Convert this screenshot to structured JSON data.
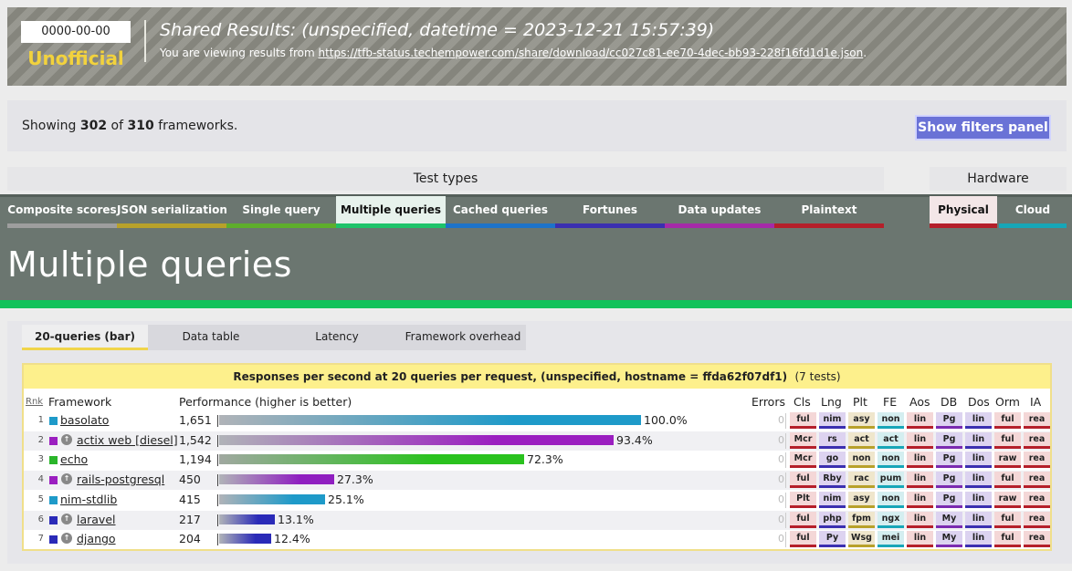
{
  "header": {
    "date": "0000-00-00",
    "status": "Unofficial",
    "title": "Shared Results: (unspecified, datetime = 2023-12-21 15:57:39)",
    "subtitle_prefix": "You are viewing results from ",
    "subtitle_link": "https://tfb-status.techempower.com/share/download/cc027c81-ee70-4dec-bb93-228f16fd1d1e.json",
    "subtitle_suffix": "."
  },
  "summary": {
    "prefix": "Showing ",
    "shown": "302",
    "middle": " of ",
    "total": "310",
    "suffix": " frameworks.",
    "filters_button": "Show filters panel"
  },
  "section_headers": {
    "test_types": "Test types",
    "hardware": "Hardware"
  },
  "test_tabs": [
    {
      "label": "Composite scores",
      "color": "#9e9e9e"
    },
    {
      "label": "JSON serialization",
      "color": "#b8a12a"
    },
    {
      "label": "Single query",
      "color": "#5eae2c"
    },
    {
      "label": "Multiple queries",
      "color": "#1ec36a",
      "active": true
    },
    {
      "label": "Cached queries",
      "color": "#1d73c9"
    },
    {
      "label": "Fortunes",
      "color": "#3b2fb0"
    },
    {
      "label": "Data updates",
      "color": "#a52aa8"
    },
    {
      "label": "Plaintext",
      "color": "#b51f2a"
    }
  ],
  "hardware_tabs": [
    {
      "label": "Physical",
      "color": "#b51f2a",
      "active": true
    },
    {
      "label": "Cloud",
      "color": "#17a6b8"
    }
  ],
  "page_title": "Multiple queries",
  "sub_tabs": [
    {
      "label": "20-queries (bar)",
      "active": true
    },
    {
      "label": "Data table"
    },
    {
      "label": "Latency"
    },
    {
      "label": "Framework overhead"
    }
  ],
  "table": {
    "title": "Responses per second at 20 queries per request, (unspecified, hostname = ffda62f07df1)",
    "count": "(7 tests)",
    "columns": {
      "rank": "Rnk",
      "framework": "Framework",
      "performance": "Performance (higher is better)",
      "errors": "Errors",
      "cls": "Cls",
      "lng": "Lng",
      "plt": "Plt",
      "fe": "FE",
      "aos": "Aos",
      "db": "DB",
      "dos": "Dos",
      "orm": "Orm",
      "ia": "IA"
    }
  },
  "chart_data": {
    "type": "bar",
    "title": "Responses per second at 20 queries per request, (unspecified, hostname = ffda62f07df1)",
    "categories": [
      "basolato",
      "actix web [diesel]",
      "echo",
      "rails-postgresql",
      "nim-stdlib",
      "laravel",
      "django"
    ],
    "values": [
      1651,
      1542,
      1194,
      450,
      415,
      217,
      204
    ],
    "percent": [
      "100.0%",
      "93.4%",
      "72.3%",
      "27.3%",
      "25.1%",
      "13.1%",
      "12.4%"
    ],
    "ylabel": "Performance (higher is better)"
  },
  "rows": [
    {
      "rank": "1",
      "name": "basolato",
      "value": "1,651",
      "pct": "100.0%",
      "frac": 1.0,
      "sq": "#1e9ac9",
      "icon": false,
      "bar": [
        "#b0b3b8",
        "#1e9ac9"
      ],
      "errors": "0",
      "badges": [
        "ful",
        "nim",
        "asy",
        "non",
        "lin",
        "Pg",
        "lin",
        "ful",
        "rea"
      ]
    },
    {
      "rank": "2",
      "name": "actix web [diesel]",
      "value": "1,542",
      "pct": "93.4%",
      "frac": 0.934,
      "sq": "#9b1fc0",
      "icon": true,
      "bar": [
        "#b0b3b8",
        "#9b1fc0"
      ],
      "errors": "0",
      "badges": [
        "Mcr",
        "rs",
        "act",
        "act",
        "lin",
        "Pg",
        "lin",
        "ful",
        "rea"
      ]
    },
    {
      "rank": "3",
      "name": "echo",
      "value": "1,194",
      "pct": "72.3%",
      "frac": 0.723,
      "sq": "#2ab52a",
      "icon": false,
      "bar": [
        "#a0a8a0",
        "#2ac21e"
      ],
      "errors": "0",
      "badges": [
        "Mcr",
        "go",
        "non",
        "non",
        "lin",
        "Pg",
        "lin",
        "raw",
        "rea"
      ]
    },
    {
      "rank": "4",
      "name": "rails-postgresql",
      "value": "450",
      "pct": "27.3%",
      "frac": 0.273,
      "sq": "#9b1fc0",
      "icon": true,
      "bar": [
        "#b0b3b8",
        "#8f1fc0"
      ],
      "errors": "0",
      "badges": [
        "ful",
        "Rby",
        "rac",
        "pum",
        "lin",
        "Pg",
        "lin",
        "ful",
        "rea"
      ]
    },
    {
      "rank": "5",
      "name": "nim-stdlib",
      "value": "415",
      "pct": "25.1%",
      "frac": 0.251,
      "sq": "#1e9ac9",
      "icon": false,
      "bar": [
        "#b0b3b8",
        "#1e9ac9"
      ],
      "errors": "0",
      "badges": [
        "Plt",
        "nim",
        "asy",
        "non",
        "lin",
        "Pg",
        "lin",
        "raw",
        "rea"
      ]
    },
    {
      "rank": "6",
      "name": "laravel",
      "value": "217",
      "pct": "13.1%",
      "frac": 0.131,
      "sq": "#2a2ab8",
      "icon": true,
      "bar": [
        "#b0b3b8",
        "#2a2ab8"
      ],
      "errors": "0",
      "badges": [
        "ful",
        "php",
        "fpm",
        "ngx",
        "lin",
        "My",
        "lin",
        "ful",
        "rea"
      ]
    },
    {
      "rank": "7",
      "name": "django",
      "value": "204",
      "pct": "12.4%",
      "frac": 0.124,
      "sq": "#2a2ab8",
      "icon": true,
      "bar": [
        "#b0b3b8",
        "#2a2ab8"
      ],
      "errors": "0",
      "badges": [
        "ful",
        "Py",
        "Wsg",
        "mei",
        "lin",
        "My",
        "lin",
        "ful",
        "rea"
      ]
    }
  ],
  "badge_colors": [
    {
      "bg": "#f4d7d7",
      "line": "#b51f2a"
    },
    {
      "bg": "#ddd3f0",
      "line": "#3b2fb0"
    },
    {
      "bg": "#efe6cc",
      "line": "#b8a12a"
    },
    {
      "bg": "#d4eef0",
      "line": "#17a6b8"
    },
    {
      "bg": "#f4d7d7",
      "line": "#b51f2a"
    },
    {
      "bg": "#dcd3f0",
      "line": "#7a2ab0"
    },
    {
      "bg": "#dcd3f0",
      "line": "#3b2fb0"
    },
    {
      "bg": "#f4d7d7",
      "line": "#b51f2a"
    },
    {
      "bg": "#f4d7d7",
      "line": "#b51f2a"
    }
  ]
}
